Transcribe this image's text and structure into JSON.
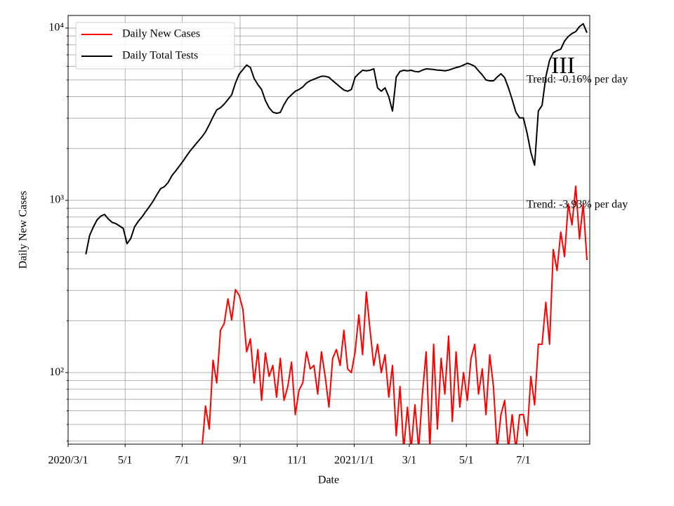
{
  "chart_data": {
    "type": "line",
    "x_label": "Date",
    "y_label": "Daily New Cases",
    "x": [
      "2020-03-20",
      "2020-03-24",
      "2020-03-28",
      "2020-04-01",
      "2020-04-05",
      "2020-04-09",
      "2020-04-13",
      "2020-04-17",
      "2020-04-21",
      "2020-04-25",
      "2020-04-29",
      "2020-05-03",
      "2020-05-07",
      "2020-05-11",
      "2020-05-15",
      "2020-05-19",
      "2020-05-23",
      "2020-05-27",
      "2020-05-31",
      "2020-06-04",
      "2020-06-08",
      "2020-06-12",
      "2020-06-16",
      "2020-06-20",
      "2020-06-24",
      "2020-06-28",
      "2020-07-02",
      "2020-07-06",
      "2020-07-10",
      "2020-07-14",
      "2020-07-18",
      "2020-07-22",
      "2020-07-26",
      "2020-07-30",
      "2020-08-03",
      "2020-08-07",
      "2020-08-11",
      "2020-08-15",
      "2020-08-19",
      "2020-08-23",
      "2020-08-27",
      "2020-08-31",
      "2020-09-04",
      "2020-09-08",
      "2020-09-12",
      "2020-09-16",
      "2020-09-20",
      "2020-09-24",
      "2020-09-28",
      "2020-10-02",
      "2020-10-06",
      "2020-10-10",
      "2020-10-14",
      "2020-10-18",
      "2020-10-22",
      "2020-10-26",
      "2020-10-30",
      "2020-11-03",
      "2020-11-07",
      "2020-11-11",
      "2020-11-15",
      "2020-11-19",
      "2020-11-23",
      "2020-11-27",
      "2020-12-01",
      "2020-12-05",
      "2020-12-09",
      "2020-12-13",
      "2020-12-17",
      "2020-12-21",
      "2020-12-25",
      "2020-12-29",
      "2021-01-02",
      "2021-01-06",
      "2021-01-10",
      "2021-01-14",
      "2021-01-18",
      "2021-01-22",
      "2021-01-26",
      "2021-01-30",
      "2021-02-03",
      "2021-02-07",
      "2021-02-11",
      "2021-02-15",
      "2021-02-19",
      "2021-02-23",
      "2021-02-27",
      "2021-03-03",
      "2021-03-07",
      "2021-03-11",
      "2021-03-15",
      "2021-03-19",
      "2021-03-23",
      "2021-03-27",
      "2021-03-31",
      "2021-04-04",
      "2021-04-08",
      "2021-04-12",
      "2021-04-16",
      "2021-04-20",
      "2021-04-24",
      "2021-04-28",
      "2021-05-02",
      "2021-05-06",
      "2021-05-10",
      "2021-05-14",
      "2021-05-18",
      "2021-05-22",
      "2021-05-26",
      "2021-05-30",
      "2021-06-03",
      "2021-06-07",
      "2021-06-11",
      "2021-06-15",
      "2021-06-19",
      "2021-06-23",
      "2021-06-27",
      "2021-07-01",
      "2021-07-05",
      "2021-07-09",
      "2021-07-13",
      "2021-07-17",
      "2021-07-21",
      "2021-07-25",
      "2021-07-29",
      "2021-08-02",
      "2021-08-06",
      "2021-08-10",
      "2021-08-14",
      "2021-08-18",
      "2021-08-22",
      "2021-08-26",
      "2021-08-30",
      "2021-09-03",
      "2021-09-07"
    ],
    "series": [
      {
        "name": "Daily New Cases",
        "color": "#ff0000",
        "values": [
          null,
          null,
          null,
          null,
          null,
          null,
          null,
          null,
          null,
          null,
          null,
          null,
          null,
          null,
          null,
          null,
          null,
          null,
          null,
          null,
          null,
          null,
          null,
          null,
          null,
          null,
          null,
          null,
          null,
          null,
          null,
          35,
          64,
          47,
          118,
          87,
          176,
          193,
          268,
          202,
          303,
          281,
          233,
          132,
          157,
          87,
          136,
          69,
          130,
          95,
          110,
          72,
          121,
          69,
          83,
          115,
          57,
          79,
          87,
          132,
          105,
          110,
          75,
          132,
          95,
          63,
          121,
          136,
          110,
          176,
          105,
          100,
          132,
          216,
          127,
          294,
          176,
          110,
          146,
          100,
          127,
          72,
          110,
          43,
          83,
          36,
          63,
          36,
          65,
          36,
          75,
          132,
          36,
          146,
          47,
          121,
          75,
          163,
          52,
          132,
          63,
          100,
          69,
          121,
          146,
          75,
          105,
          57,
          127,
          83,
          36,
          57,
          69,
          36,
          57,
          36,
          57,
          57,
          43,
          95,
          65,
          146,
          146,
          256,
          146,
          518,
          391,
          655,
          471,
          955,
          720,
          1207,
          597,
          955,
          450
        ]
      },
      {
        "name": "Daily Total Tests",
        "color": "#000000",
        "values": [
          486,
          625,
          700,
          770,
          810,
          828,
          780,
          745,
          733,
          710,
          687,
          560,
          600,
          700,
          755,
          800,
          860,
          920,
          990,
          1080,
          1170,
          1200,
          1270,
          1390,
          1480,
          1580,
          1690,
          1820,
          1950,
          2070,
          2200,
          2330,
          2500,
          2750,
          3050,
          3350,
          3450,
          3620,
          3850,
          4100,
          4800,
          5400,
          5750,
          6100,
          5900,
          5100,
          4700,
          4400,
          3800,
          3450,
          3250,
          3200,
          3240,
          3600,
          3910,
          4100,
          4300,
          4400,
          4550,
          4800,
          4950,
          5050,
          5150,
          5250,
          5250,
          5180,
          4950,
          4750,
          4550,
          4370,
          4300,
          4400,
          5180,
          5450,
          5690,
          5650,
          5690,
          5800,
          4500,
          4300,
          4500,
          4000,
          3300,
          5200,
          5600,
          5690,
          5650,
          5690,
          5600,
          5570,
          5700,
          5800,
          5780,
          5750,
          5700,
          5690,
          5650,
          5700,
          5800,
          5900,
          5970,
          6100,
          6250,
          6150,
          6000,
          5650,
          5350,
          5000,
          4940,
          4940,
          5200,
          5430,
          5150,
          4500,
          3850,
          3250,
          3010,
          3010,
          2450,
          1900,
          1600,
          3300,
          3560,
          5200,
          6500,
          7200,
          7400,
          7550,
          8400,
          8940,
          9300,
          9540,
          10200,
          10600,
          9400
        ]
      }
    ],
    "xlim": [
      "2020-03-01",
      "2021-09-10"
    ],
    "xticks": [
      {
        "value": "2020-03-01",
        "label": "2020/3/1"
      },
      {
        "value": "2020-05-01",
        "label": "5/1"
      },
      {
        "value": "2020-07-01",
        "label": "7/1"
      },
      {
        "value": "2020-09-01",
        "label": "9/1"
      },
      {
        "value": "2020-11-01",
        "label": "11/1"
      },
      {
        "value": "2021-01-01",
        "label": "2021/1/1"
      },
      {
        "value": "2021-03-01",
        "label": "3/1"
      },
      {
        "value": "2021-05-01",
        "label": "5/1"
      },
      {
        "value": "2021-07-01",
        "label": "7/1"
      }
    ],
    "ylim": [
      38.4,
      11840
    ],
    "log_y": true,
    "yticks": [
      {
        "value": 100,
        "label": "10²"
      },
      {
        "value": 1000,
        "label": "10³"
      },
      {
        "value": 10000,
        "label": "10⁴"
      }
    ],
    "yminorticks": [
      40,
      50,
      60,
      70,
      80,
      90,
      200,
      300,
      400,
      500,
      600,
      700,
      800,
      900,
      2000,
      3000,
      4000,
      5000,
      6000,
      7000,
      8000,
      9000
    ],
    "grid": true,
    "legend": "upper left",
    "annotations": [
      "III",
      "Trend: -0.16% per day",
      "Trend: -3.93% per day"
    ]
  }
}
